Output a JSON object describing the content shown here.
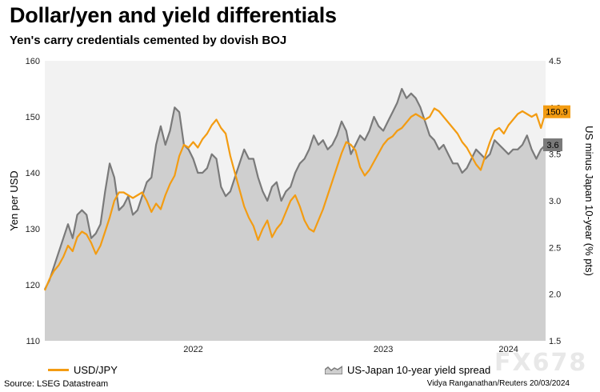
{
  "title": "Dollar/yen and yield differentials",
  "subtitle": "Yen's carry credentials cemented by dovish BOJ",
  "source": "Source: LSEG Datastream",
  "credit": "Vidya Ranganathan/Reuters 20/03/2024",
  "watermark": "FX678",
  "colors": {
    "usdjpy": "#f39c12",
    "spread_fill": "#cfcfcf",
    "spread_line": "#7a7a7a",
    "plot_bg": "#f2f2f2"
  },
  "chart_data": {
    "type": "line",
    "x_ticks": [
      "2022",
      "2023",
      "2024"
    ],
    "x_tick_index": [
      32,
      73,
      100
    ],
    "y_left": {
      "label": "Yen per USD",
      "range": [
        110,
        160
      ],
      "ticks": [
        110,
        120,
        130,
        140,
        150,
        160
      ]
    },
    "y_right": {
      "label": "US minus Japan 10-year (% pts)",
      "range": [
        1.5,
        4.5
      ],
      "ticks": [
        1.5,
        2.0,
        2.5,
        3.0,
        3.5,
        4.0,
        4.5
      ]
    },
    "series": [
      {
        "name": "USD/JPY",
        "axis": "left",
        "end_label": "150.9",
        "values": [
          119.0,
          121.0,
          122.5,
          123.5,
          125.0,
          127.0,
          126.0,
          128.5,
          129.5,
          129.0,
          127.5,
          125.5,
          127.0,
          129.5,
          132.0,
          135.0,
          136.5,
          136.5,
          136.0,
          135.5,
          136.0,
          136.5,
          135.0,
          133.0,
          134.5,
          133.5,
          136.0,
          138.0,
          139.5,
          143.0,
          145.0,
          144.5,
          145.5,
          144.5,
          146.0,
          147.0,
          148.5,
          149.5,
          148.0,
          147.0,
          143.0,
          140.0,
          137.0,
          134.0,
          132.0,
          130.5,
          128.0,
          130.0,
          131.5,
          128.5,
          130.0,
          131.0,
          133.0,
          135.0,
          136.0,
          134.0,
          131.5,
          130.0,
          129.5,
          131.5,
          133.5,
          136.0,
          138.5,
          141.0,
          143.5,
          145.5,
          145.0,
          144.0,
          141.0,
          139.5,
          140.5,
          142.0,
          143.5,
          145.0,
          146.0,
          146.5,
          147.5,
          148.0,
          149.0,
          150.0,
          150.5,
          150.0,
          149.5,
          150.0,
          151.5,
          151.0,
          150.0,
          149.0,
          148.0,
          147.0,
          145.5,
          144.5,
          143.0,
          141.5,
          140.5,
          143.0,
          145.5,
          147.5,
          148.0,
          147.0,
          148.5,
          149.5,
          150.5,
          151.0,
          150.5,
          150.0,
          150.5,
          148.0,
          150.9
        ]
      },
      {
        "name": "US-Japan 10-year yield spread",
        "axis": "right",
        "end_label": "3.6",
        "values": [
          2.05,
          2.15,
          2.3,
          2.45,
          2.6,
          2.75,
          2.6,
          2.85,
          2.9,
          2.85,
          2.6,
          2.65,
          2.75,
          3.1,
          3.4,
          3.25,
          2.9,
          2.95,
          3.05,
          2.85,
          2.9,
          3.05,
          3.2,
          3.25,
          3.6,
          3.8,
          3.6,
          3.75,
          4.0,
          3.95,
          3.6,
          3.55,
          3.45,
          3.3,
          3.3,
          3.35,
          3.5,
          3.45,
          3.15,
          3.05,
          3.1,
          3.25,
          3.4,
          3.55,
          3.45,
          3.45,
          3.25,
          3.1,
          3.0,
          3.15,
          3.2,
          3.0,
          3.1,
          3.15,
          3.3,
          3.4,
          3.45,
          3.55,
          3.7,
          3.6,
          3.65,
          3.55,
          3.6,
          3.7,
          3.85,
          3.75,
          3.5,
          3.6,
          3.7,
          3.65,
          3.75,
          3.9,
          3.8,
          3.75,
          3.85,
          3.95,
          4.05,
          4.2,
          4.1,
          4.15,
          4.1,
          4.0,
          3.85,
          3.7,
          3.65,
          3.55,
          3.6,
          3.5,
          3.4,
          3.4,
          3.3,
          3.35,
          3.45,
          3.55,
          3.5,
          3.45,
          3.5,
          3.65,
          3.6,
          3.55,
          3.5,
          3.55,
          3.55,
          3.6,
          3.7,
          3.55,
          3.45,
          3.55,
          3.6
        ]
      }
    ],
    "legend": {
      "position": "bottom"
    },
    "grid": false
  }
}
